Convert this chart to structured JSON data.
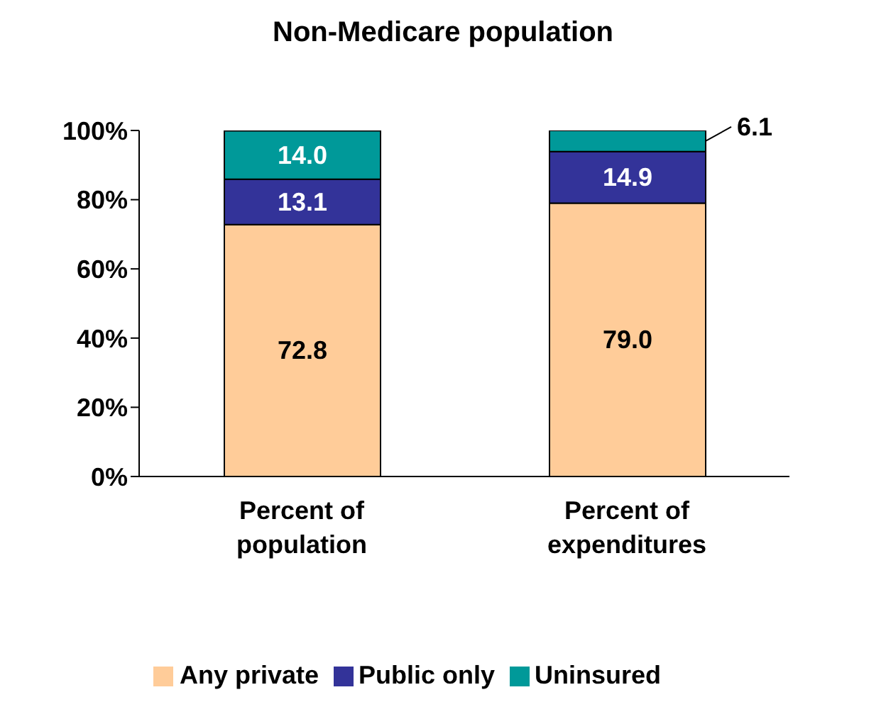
{
  "chart_data": {
    "type": "bar",
    "title": "Non-Medicare population",
    "categories": [
      "Percent of population",
      "Percent of expenditures"
    ],
    "stacked": true,
    "series": [
      {
        "name": "Any private",
        "color": "#ffcc99",
        "values": [
          72.8,
          79.0
        ],
        "value_labels": [
          "72.8",
          "79.0"
        ]
      },
      {
        "name": "Public only",
        "color": "#333399",
        "values": [
          13.1,
          14.9
        ],
        "value_labels": [
          "13.1",
          "14.9"
        ]
      },
      {
        "name": "Uninsured",
        "color": "#009999",
        "values": [
          14.0,
          6.1
        ],
        "value_labels": [
          "14.0",
          "6.1"
        ]
      }
    ],
    "ylim": [
      0,
      100
    ],
    "yticks": [
      {
        "value": 0,
        "label": "0%"
      },
      {
        "value": 20,
        "label": "20%"
      },
      {
        "value": 40,
        "label": "40%"
      },
      {
        "value": 60,
        "label": "60%"
      },
      {
        "value": 80,
        "label": "80%"
      },
      {
        "value": 100,
        "label": "100%"
      }
    ],
    "grid": false,
    "legend": "bottom"
  }
}
